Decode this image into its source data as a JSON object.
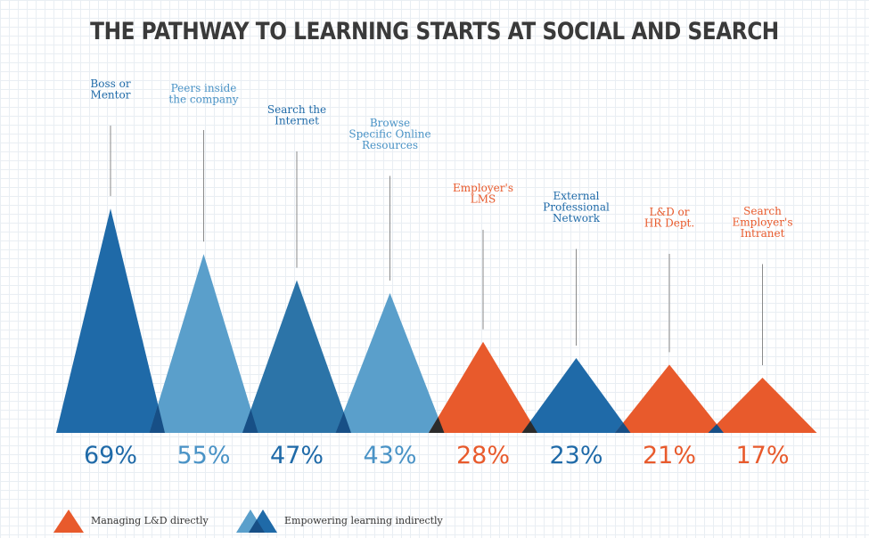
{
  "title": "THE PATHWAY TO LEARNING STARTS AT SOCIAL AND SEARCH",
  "colors": {
    "blue_dark": "#1f6aa8",
    "blue_light": "#5a9fcb",
    "blue_mid": "#2c74a8",
    "orange": "#e85a2c",
    "overlap_blue": "#174f86",
    "overlap_black": "#2b2b2b"
  },
  "legend": {
    "managing_label": "Managing L&D directly",
    "empowering_label": "Empowering learning indirectly"
  },
  "chart_data": {
    "type": "bar",
    "title": "THE PATHWAY TO LEARNING STARTS AT SOCIAL AND SEARCH",
    "categories": [
      "Boss or Mentor",
      "Peers inside the company",
      "Search the Internet",
      "Browse Specific Online Resources",
      "Employer's LMS",
      "External Professional Network",
      "L&D or HR Dept.",
      "Search Employer's Intranet"
    ],
    "label_lines": [
      [
        "Boss or",
        "Mentor"
      ],
      [
        "Peers inside",
        "the company"
      ],
      [
        "Search the",
        "Internet"
      ],
      [
        "Browse",
        "Specific Online",
        "Resources"
      ],
      [
        "Employer's",
        "LMS"
      ],
      [
        "External",
        "Professional",
        "Network"
      ],
      [
        "L&D or",
        "HR Dept."
      ],
      [
        "Search",
        "Employer's",
        "Intranet"
      ]
    ],
    "values": [
      69,
      55,
      47,
      43,
      28,
      23,
      21,
      17
    ],
    "value_labels": [
      "69%",
      "55%",
      "47%",
      "43%",
      "28%",
      "23%",
      "21%",
      "17%"
    ],
    "groups": [
      "Empowering learning indirectly",
      "Empowering learning indirectly",
      "Empowering learning indirectly",
      "Empowering learning indirectly",
      "Managing L&D directly",
      "Empowering learning indirectly",
      "Managing L&D directly",
      "Managing L&D directly"
    ],
    "bar_colors": [
      "#1f6aa8",
      "#5a9fcb",
      "#2c74a8",
      "#5a9fcb",
      "#e85a2c",
      "#1f6aa8",
      "#e85a2c",
      "#e85a2c"
    ],
    "label_colors": [
      "#1f6aa8",
      "#4a93c6",
      "#1f6aa8",
      "#4a93c6",
      "#e85a2c",
      "#1f6aa8",
      "#e85a2c",
      "#e85a2c"
    ],
    "ylim": [
      0,
      100
    ],
    "grid": true,
    "legend_position": "bottom-left"
  }
}
